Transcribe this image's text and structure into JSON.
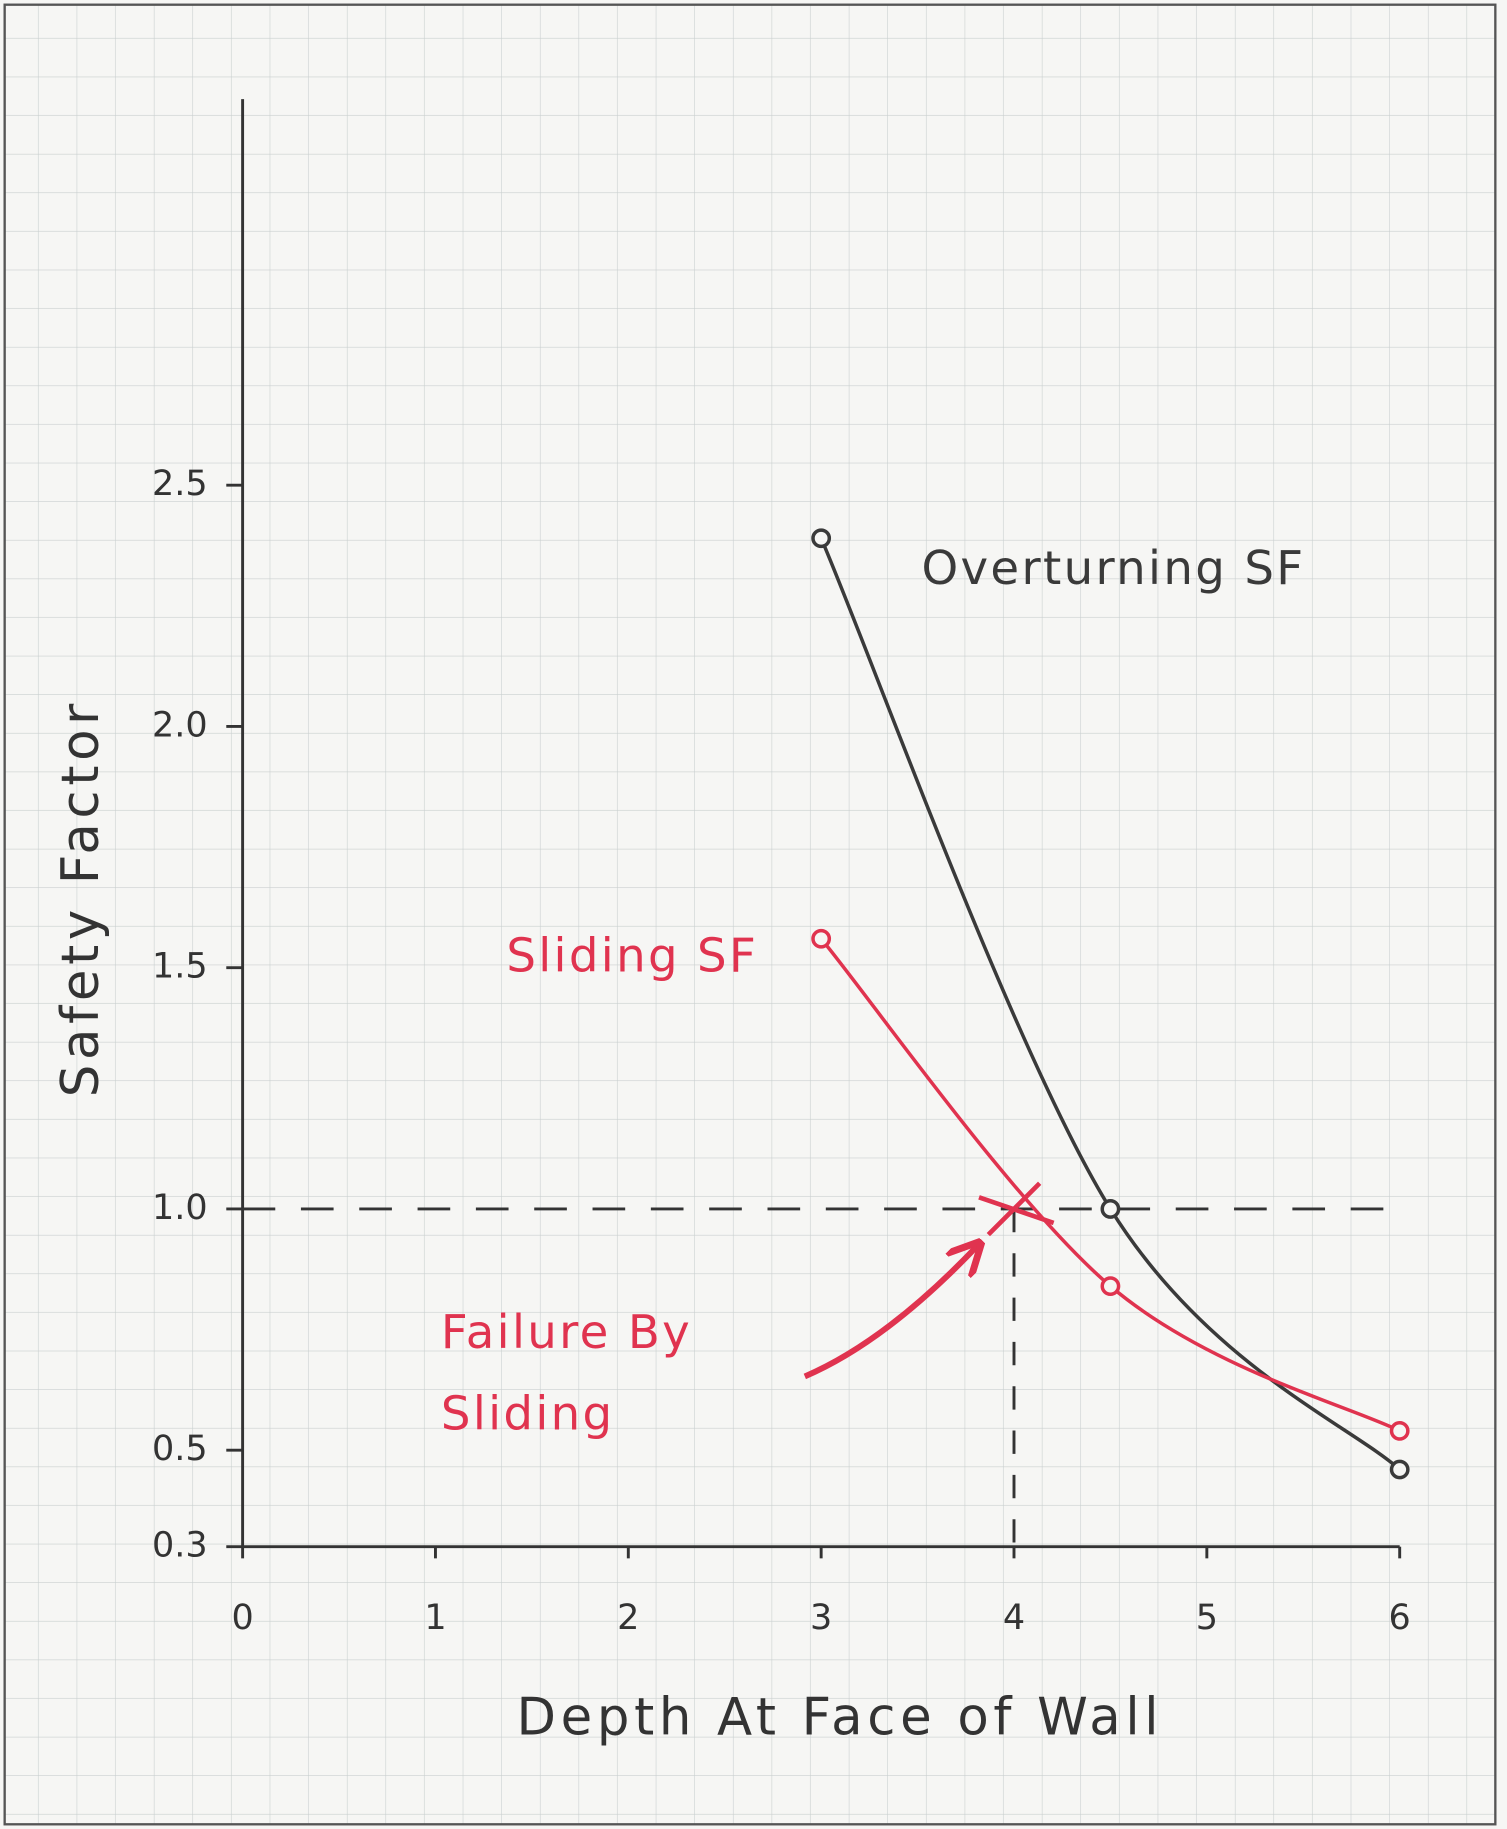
{
  "chart_data": {
    "type": "line",
    "x_label": "Depth At Face of Wall",
    "y_label": "Safety Factor",
    "x": [
      3,
      4.5,
      6
    ],
    "series": [
      {
        "name": "Overturning SF",
        "color": "#3a3a3a",
        "values": [
          2.39,
          1.0,
          0.46
        ]
      },
      {
        "name": "Sliding SF",
        "color": "#e0334f",
        "values": [
          1.56,
          0.84,
          0.54
        ]
      }
    ],
    "xlim": [
      0,
      6
    ],
    "xticks": [
      0,
      1,
      2,
      3,
      4,
      5,
      6
    ],
    "ylim": [
      0.3,
      3.3
    ],
    "yticks": [
      0.3,
      0.5,
      {
        "value": 1,
        "label": "1.0"
      },
      1.5,
      {
        "value": 2,
        "label": "2.0"
      },
      2.5
    ],
    "hline": 1,
    "vline": 4,
    "annotation": [
      "Failure By",
      "Sliding"
    ]
  }
}
